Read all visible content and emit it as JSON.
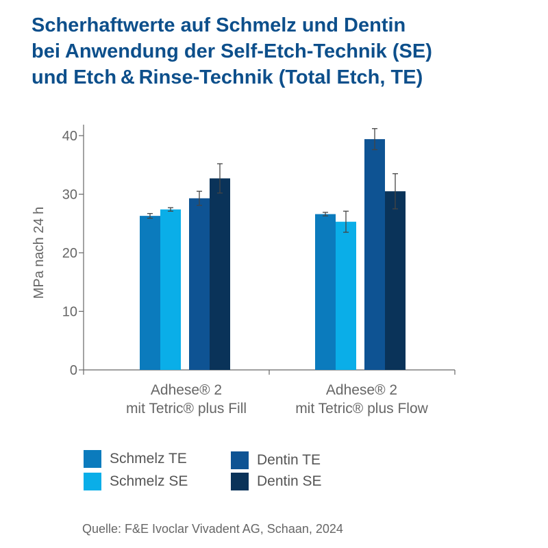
{
  "title_lines": [
    "Scherhaftwerte auf Schmelz und Dentin",
    "bei Anwendung der Self-Etch-Technik (SE)",
    "und Etch & Rinse-Technik (Total Etch, TE)"
  ],
  "source": "Quelle:  F&E Ivoclar Vivadent AG, Schaan, 2024",
  "chart_data": {
    "type": "bar",
    "ylabel": "MPa nach 24 h",
    "ylim": [
      0,
      40
    ],
    "yticks": [
      0,
      10,
      20,
      30,
      40
    ],
    "categories": [
      {
        "line1": "Adhese® 2",
        "line2": "mit Tetric® plus Fill"
      },
      {
        "line1": "Adhese® 2",
        "line2": "mit Tetric® plus Flow"
      }
    ],
    "series": [
      {
        "name": "Schmelz TE",
        "color": "#0b7bbd",
        "values": [
          26.3,
          26.6
        ],
        "errors": [
          0.4,
          0.3
        ]
      },
      {
        "name": "Schmelz SE",
        "color": "#0aaee8",
        "values": [
          27.4,
          25.3
        ],
        "errors": [
          0.3,
          1.8
        ]
      },
      {
        "name": "Dentin TE",
        "color": "#0e5393",
        "values": [
          29.3,
          39.4
        ],
        "errors": [
          1.2,
          1.8
        ]
      },
      {
        "name": "Dentin SE",
        "color": "#0a3359",
        "values": [
          32.7,
          30.5
        ],
        "errors": [
          2.5,
          3.0
        ]
      }
    ]
  }
}
